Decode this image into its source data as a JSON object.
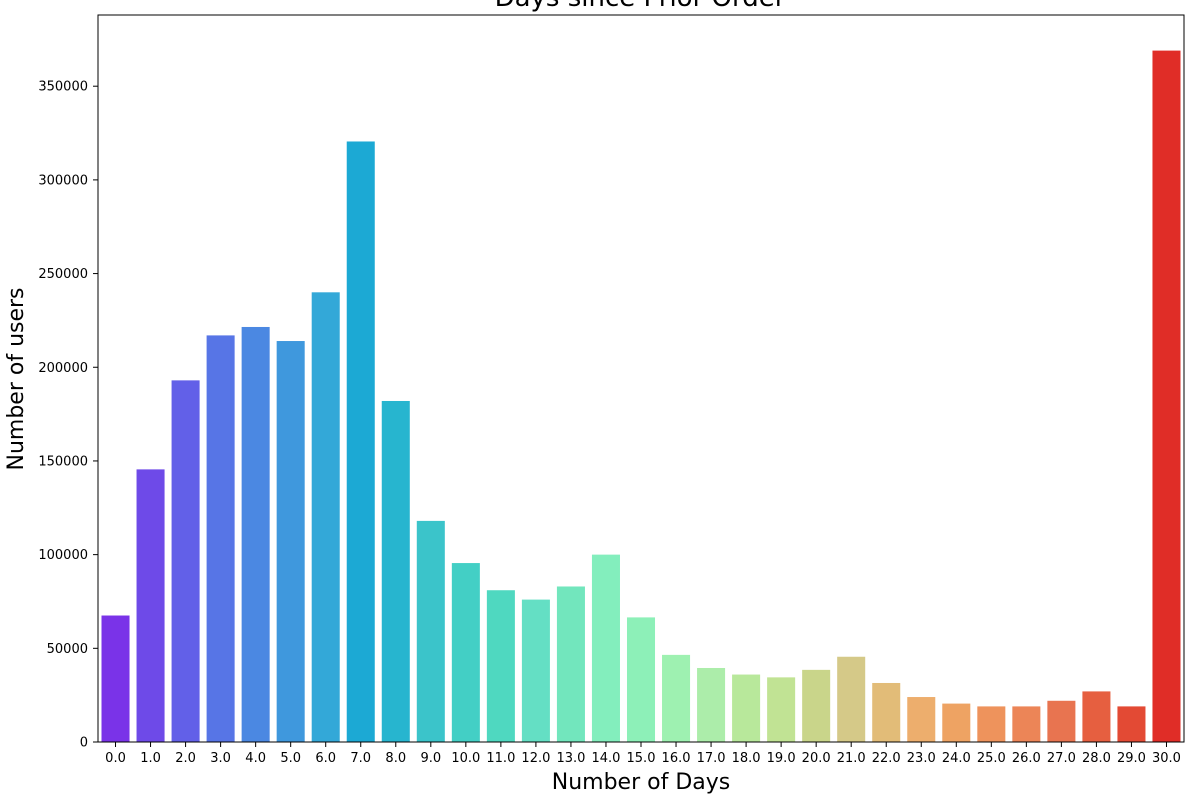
{
  "chart_data": {
    "type": "bar",
    "title": "Days since Prior Order",
    "xlabel": "Number of Days",
    "ylabel": "Number of users",
    "categories": [
      "0.0",
      "1.0",
      "2.0",
      "3.0",
      "4.0",
      "5.0",
      "6.0",
      "7.0",
      "8.0",
      "9.0",
      "10.0",
      "11.0",
      "12.0",
      "13.0",
      "14.0",
      "15.0",
      "16.0",
      "17.0",
      "18.0",
      "19.0",
      "20.0",
      "21.0",
      "22.0",
      "23.0",
      "24.0",
      "25.0",
      "26.0",
      "27.0",
      "28.0",
      "29.0",
      "30.0"
    ],
    "values": [
      67500,
      145500,
      193000,
      217000,
      221500,
      214000,
      240000,
      320500,
      182000,
      118000,
      95500,
      81000,
      76000,
      83000,
      100000,
      66500,
      46500,
      39500,
      36000,
      34500,
      38500,
      45500,
      31500,
      24000,
      20500,
      19000,
      19000,
      22000,
      27000,
      19000,
      369000
    ],
    "ylim": [
      0,
      388000
    ],
    "yticks": [
      0,
      50000,
      100000,
      150000,
      200000,
      250000,
      300000,
      350000
    ],
    "ytick_labels": [
      "0",
      "50000",
      "100000",
      "150000",
      "200000",
      "250000",
      "300000",
      "350000"
    ],
    "colors": [
      "#7a33e8",
      "#6e4ae8",
      "#6260e8",
      "#5775e6",
      "#4b88e2",
      "#3f98dd",
      "#33a8d8",
      "#1ca9d4",
      "#27b5cf",
      "#3bc4ca",
      "#43cfc5",
      "#4fd8c0",
      "#64dfc4",
      "#72e6bd",
      "#83eebd",
      "#8df0b8",
      "#9ef1b1",
      "#acedaa",
      "#b8e89b",
      "#c1e394",
      "#c9d58a",
      "#d5c988",
      "#e2bc78",
      "#edae6d",
      "#eea363",
      "#ee935c",
      "#ec8557",
      "#e87450",
      "#e65f40",
      "#e34a34",
      "#e02d27"
    ],
    "grid": false,
    "legend": "none"
  }
}
